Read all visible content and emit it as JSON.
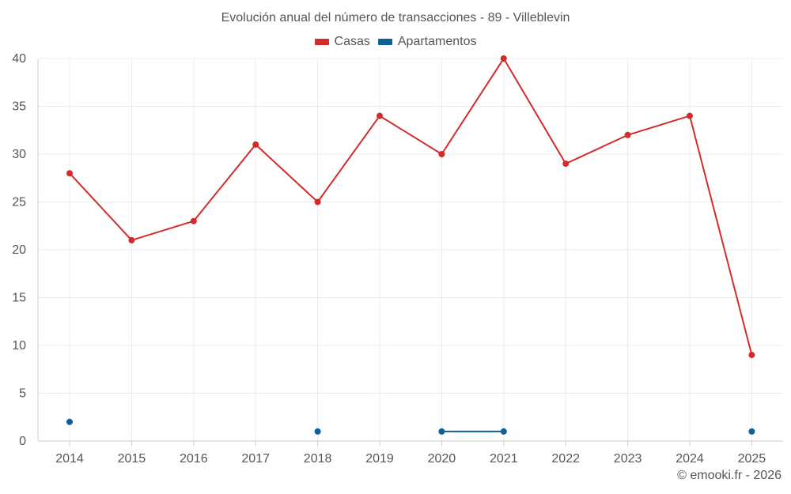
{
  "chart_data": {
    "type": "line",
    "title": "Evolución anual del número de transacciones - 89 - Villeblevin",
    "categories": [
      "2014",
      "2015",
      "2016",
      "2017",
      "2018",
      "2019",
      "2020",
      "2021",
      "2022",
      "2023",
      "2024",
      "2025"
    ],
    "series": [
      {
        "name": "Casas",
        "color": "#d32b2b",
        "values": [
          28,
          21,
          23,
          31,
          25,
          34,
          30,
          40,
          29,
          32,
          34,
          9
        ]
      },
      {
        "name": "Apartamentos",
        "color": "#0e6196",
        "values": [
          2,
          null,
          null,
          null,
          1,
          null,
          1,
          1,
          null,
          null,
          null,
          1
        ]
      }
    ],
    "y_ticks": [
      "0",
      "5",
      "10",
      "15",
      "20",
      "25",
      "30",
      "35",
      "40"
    ],
    "ylim": [
      0,
      40
    ],
    "xlabel": "",
    "ylabel": "",
    "grid": true,
    "legend_position": "top-center"
  },
  "watermark": "© emooki.fr - 2026"
}
